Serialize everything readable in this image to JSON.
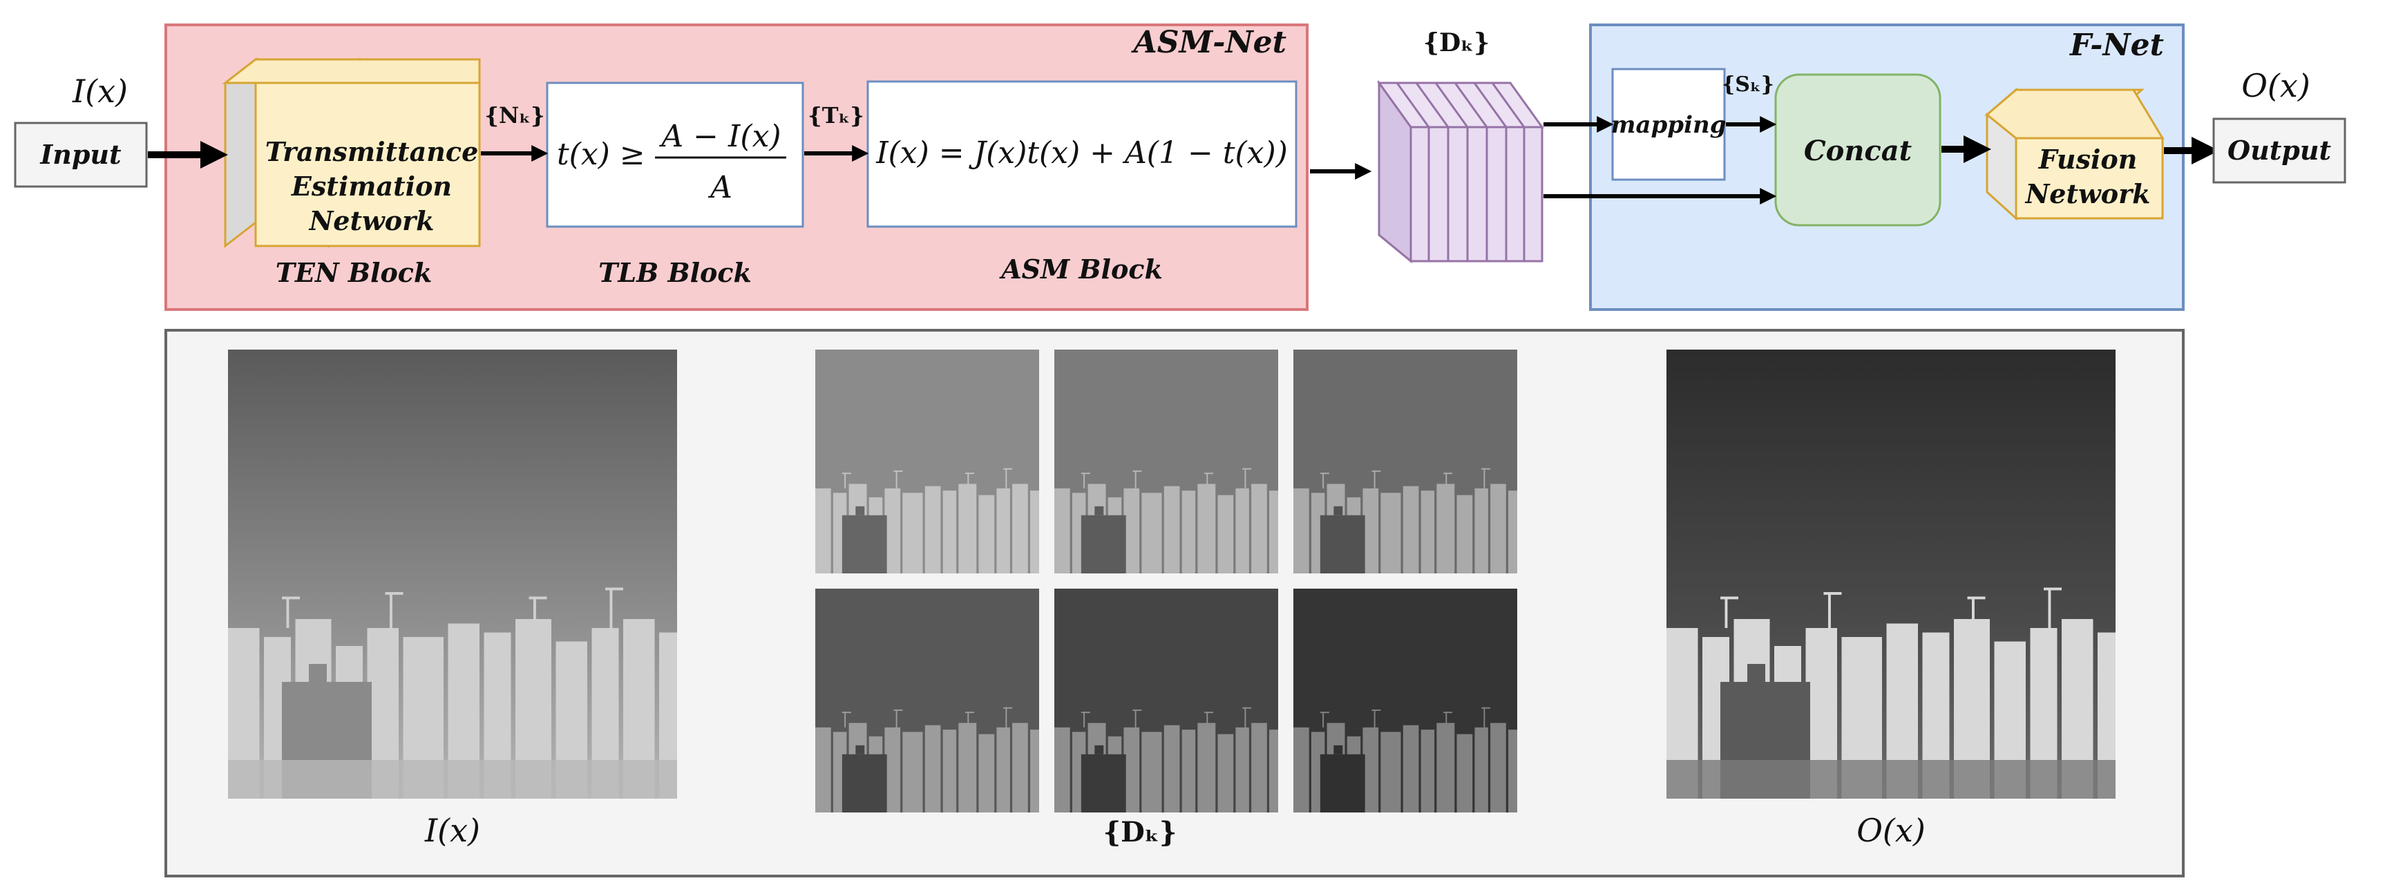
{
  "asm_net": {
    "title": "ASM-Net",
    "ten_block": {
      "lines": [
        "Transmittance",
        "Estimation",
        "Network"
      ],
      "label": "TEN Block"
    },
    "tlb_block": {
      "formula_lhs": "t(x) ≥",
      "numerator": "A − I(x)",
      "denominator": "A",
      "label": "TLB Block"
    },
    "asm_block": {
      "formula": "I(x) = J(x)t(x) + A(1 − t(x))",
      "label": "ASM Block"
    },
    "nk_label": "{Nₖ}",
    "tk_label": "{Tₖ}"
  },
  "input": {
    "symbol": "I(x)",
    "label": "Input"
  },
  "dk_stack": {
    "label": "{Dₖ}"
  },
  "f_net": {
    "title": "F-Net",
    "mapping_label": "mapping",
    "sk_label": "{Sₖ}",
    "concat_label": "Concat",
    "fusion": {
      "lines": [
        "Fusion",
        "Network"
      ]
    }
  },
  "output": {
    "symbol": "O(x)",
    "label": "Output"
  },
  "examples": {
    "input_caption": "I(x)",
    "dk_caption": "{Dₖ}",
    "output_caption": "O(x)",
    "dk_brightness": [
      0.62,
      0.52,
      0.42,
      0.3,
      0.18,
      0.08
    ]
  },
  "colors": {
    "asm_bg": "#f8cdcf",
    "asm_border": "#d9777c",
    "fnet_bg": "#dae8fc",
    "fnet_border": "#6c8ebf",
    "block_face": "#fdf0c8",
    "block_border": "#d6a532",
    "purple_face": "#e9dcf2",
    "purple_border": "#9673a6",
    "concat_bg": "#d5e8d4",
    "concat_border": "#82b366",
    "panel_bg": "#f4f4f4"
  }
}
